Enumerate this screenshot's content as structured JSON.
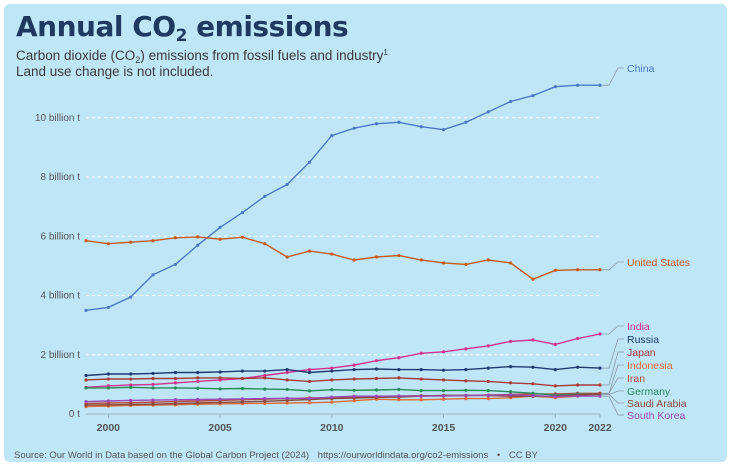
{
  "header": {
    "title_prefix": "Annual CO",
    "title_sub": "2",
    "title_suffix": " emissions",
    "subtitle_line1_a": "Carbon dioxide (CO",
    "subtitle_line1_sub": "2",
    "subtitle_line1_b": ") emissions from fossil fuels and industry",
    "subtitle_line1_note": "1",
    "subtitle_line2": "Land use change is not included."
  },
  "footer": {
    "source": "Source: Our World in Data based on the Global Carbon Project (2024)",
    "url": "https://ourworldindata.org/co2-emissions",
    "separator": "•",
    "license": "CC BY"
  },
  "chart_data": {
    "type": "line",
    "title": "Annual CO2 emissions",
    "xlabel": "",
    "ylabel": "",
    "xlim": [
      1999,
      2022
    ],
    "ylim": [
      0,
      10000000000
    ],
    "grid": true,
    "legend": "right-end-labels",
    "x_ticks": [
      2000,
      2005,
      2010,
      2015,
      2020,
      2022
    ],
    "x_tick_labels": [
      "2000",
      "2005",
      "2010",
      "2015",
      "2020",
      "2022"
    ],
    "y_ticks": [
      0,
      2000000000,
      4000000000,
      6000000000,
      8000000000,
      10000000000
    ],
    "y_tick_labels": [
      "0 t",
      "2 billion t",
      "4 billion t",
      "6 billion t",
      "8 billion t",
      "10 billion t"
    ],
    "x": [
      1999,
      2000,
      2001,
      2002,
      2003,
      2004,
      2005,
      2006,
      2007,
      2008,
      2009,
      2010,
      2011,
      2012,
      2013,
      2014,
      2015,
      2016,
      2017,
      2018,
      2019,
      2020,
      2021,
      2022
    ],
    "series": [
      {
        "name": "China",
        "color": "#4c78c4",
        "values": [
          3.5,
          3.6,
          3.95,
          4.7,
          5.05,
          5.7,
          6.3,
          6.8,
          7.35,
          7.75,
          8.5,
          9.4,
          9.65,
          9.8,
          9.85,
          9.7,
          9.6,
          9.85,
          10.2,
          10.55,
          10.75,
          11.05,
          11.1,
          11.1
        ]
      },
      {
        "name": "United States",
        "color": "#c85a1a",
        "values": [
          5.85,
          5.75,
          5.8,
          5.85,
          5.95,
          5.98,
          5.9,
          5.97,
          5.75,
          5.3,
          5.5,
          5.4,
          5.2,
          5.3,
          5.35,
          5.2,
          5.1,
          5.05,
          5.2,
          5.1,
          4.55,
          4.85,
          4.87,
          4.87
        ]
      },
      {
        "name": "India",
        "color": "#d4308c",
        "values": [
          0.9,
          0.95,
          0.98,
          1.0,
          1.05,
          1.1,
          1.15,
          1.2,
          1.3,
          1.4,
          1.5,
          1.55,
          1.65,
          1.8,
          1.9,
          2.05,
          2.1,
          2.2,
          2.3,
          2.45,
          2.5,
          2.35,
          2.55,
          2.7
        ]
      },
      {
        "name": "Russia",
        "color": "#1e3a6e",
        "values": [
          1.3,
          1.35,
          1.35,
          1.37,
          1.4,
          1.4,
          1.42,
          1.45,
          1.45,
          1.5,
          1.4,
          1.45,
          1.5,
          1.52,
          1.5,
          1.5,
          1.48,
          1.5,
          1.55,
          1.6,
          1.58,
          1.5,
          1.58,
          1.55
        ]
      },
      {
        "name": "Japan",
        "color": "#a93a3a",
        "values": [
          1.15,
          1.18,
          1.18,
          1.2,
          1.2,
          1.22,
          1.22,
          1.2,
          1.22,
          1.15,
          1.1,
          1.15,
          1.18,
          1.2,
          1.22,
          1.18,
          1.15,
          1.12,
          1.1,
          1.05,
          1.02,
          0.95,
          0.98,
          0.98
        ]
      },
      {
        "name": "Indonesia",
        "color": "#e06a3a",
        "values": [
          0.25,
          0.27,
          0.29,
          0.3,
          0.31,
          0.33,
          0.34,
          0.35,
          0.36,
          0.37,
          0.38,
          0.4,
          0.45,
          0.5,
          0.48,
          0.48,
          0.5,
          0.52,
          0.52,
          0.55,
          0.6,
          0.55,
          0.6,
          0.7
        ]
      },
      {
        "name": "Iran",
        "color": "#b84a3a",
        "values": [
          0.35,
          0.37,
          0.38,
          0.4,
          0.42,
          0.44,
          0.46,
          0.48,
          0.5,
          0.52,
          0.54,
          0.55,
          0.56,
          0.58,
          0.6,
          0.62,
          0.61,
          0.62,
          0.64,
          0.66,
          0.68,
          0.68,
          0.7,
          0.7
        ]
      },
      {
        "name": "Germany",
        "color": "#2a8a5a",
        "values": [
          0.88,
          0.88,
          0.9,
          0.88,
          0.88,
          0.87,
          0.85,
          0.86,
          0.84,
          0.83,
          0.78,
          0.82,
          0.8,
          0.81,
          0.83,
          0.79,
          0.79,
          0.8,
          0.79,
          0.75,
          0.7,
          0.64,
          0.67,
          0.66
        ]
      },
      {
        "name": "Saudi Arabia",
        "color": "#8a4a3a",
        "values": [
          0.3,
          0.31,
          0.32,
          0.33,
          0.35,
          0.37,
          0.39,
          0.41,
          0.43,
          0.46,
          0.49,
          0.52,
          0.54,
          0.56,
          0.57,
          0.6,
          0.63,
          0.63,
          0.62,
          0.6,
          0.6,
          0.6,
          0.64,
          0.67
        ]
      },
      {
        "name": "South Korea",
        "color": "#9a4ab8",
        "values": [
          0.42,
          0.44,
          0.46,
          0.47,
          0.48,
          0.49,
          0.5,
          0.51,
          0.52,
          0.53,
          0.52,
          0.57,
          0.6,
          0.6,
          0.61,
          0.6,
          0.61,
          0.62,
          0.63,
          0.65,
          0.62,
          0.59,
          0.61,
          0.6
        ]
      }
    ]
  }
}
